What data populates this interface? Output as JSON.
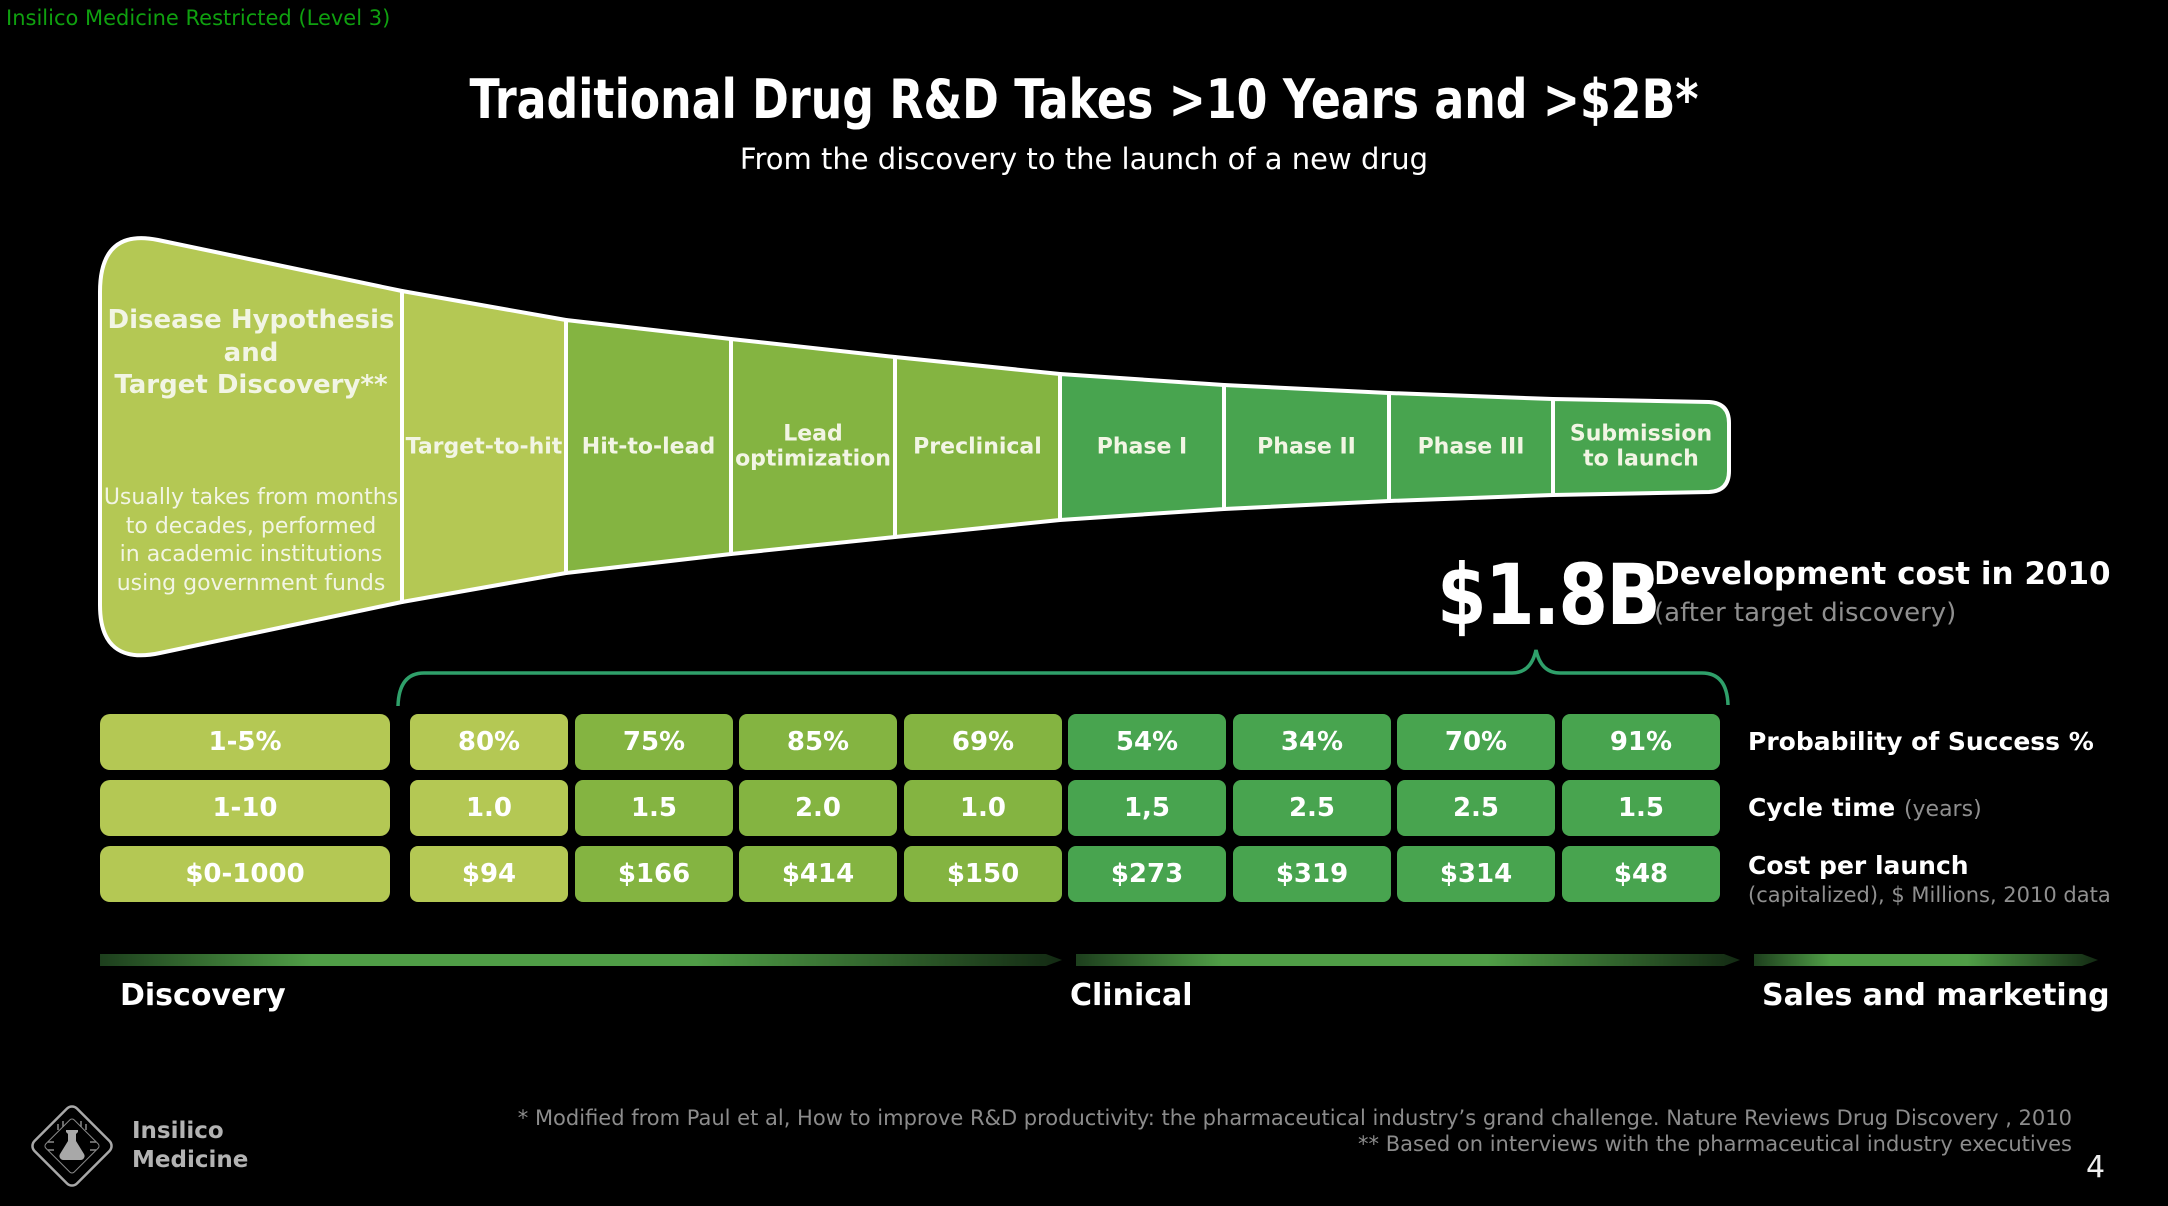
{
  "slide": {
    "classification": "Insilico Medicine Restricted (Level 3)",
    "page_number": "4"
  },
  "header": {
    "title": "Traditional Drug R&D Takes >10 Years and >$2B*",
    "subtitle": "From the discovery to the launch of a new drug"
  },
  "colors": {
    "stage_yellow": "#b4c854",
    "stage_medium": "#84b441",
    "stage_dark": "#48a44f",
    "brace": "#2fa06a",
    "restricted_text": "#0fa00f",
    "timeline_green": "#4f9d46"
  },
  "funnel": {
    "intro": {
      "title": "Disease Hypothesis\nand\nTarget Discovery**",
      "note": "Usually takes from months\nto decades, performed\nin academic institutions\nusing government funds",
      "color_key": "yellow"
    },
    "stages": [
      {
        "label": "Target-to-hit",
        "color_key": "yellow"
      },
      {
        "label": "Hit-to-lead",
        "color_key": "medium"
      },
      {
        "label": "Lead optimization",
        "color_key": "medium"
      },
      {
        "label": "Preclinical",
        "color_key": "medium"
      },
      {
        "label": "Phase I",
        "color_key": "dark"
      },
      {
        "label": "Phase II",
        "color_key": "dark"
      },
      {
        "label": "Phase III",
        "color_key": "dark"
      },
      {
        "label": "Submission to launch",
        "color_key": "dark"
      }
    ]
  },
  "cost_callout": {
    "amount": "$1.8B",
    "label": "Development cost in 2010",
    "sublabel": "(after target discovery)"
  },
  "table": {
    "rows": [
      {
        "intro": "1-5%",
        "values": [
          "80%",
          "75%",
          "85%",
          "69%",
          "54%",
          "34%",
          "70%",
          "91%"
        ],
        "label": "Probability of Success %",
        "label_suffix": ""
      },
      {
        "intro": "1-10",
        "values": [
          "1.0",
          "1.5",
          "2.0",
          "1.0",
          "1,5",
          "2.5",
          "2.5",
          "1.5"
        ],
        "label": "Cycle time",
        "label_suffix": "(years)"
      },
      {
        "intro": "$0-1000",
        "values": [
          "$94",
          "$166",
          "$414",
          "$150",
          "$273",
          "$319",
          "$314",
          "$48"
        ],
        "label": "Cost per launch",
        "label_suffix": "(capitalized), $ Millions, 2010 data"
      }
    ]
  },
  "timeline": {
    "labels": [
      "Discovery",
      "Clinical",
      "Sales and marketing"
    ]
  },
  "footnotes": {
    "line1": "* Modified from Paul et al, How to improve R&D productivity: the pharmaceutical industry’s grand challenge. Nature Reviews Drug Discovery , 2010",
    "line2": "** Based on interviews with the pharmaceutical industry executives"
  },
  "logo": {
    "line1": "Insilico",
    "line2": "Medicine"
  },
  "chart_data": {
    "type": "table",
    "title": "Traditional Drug R&D Takes >10 Years and >$2B*",
    "subtitle": "From the discovery to the launch of a new drug",
    "categories": [
      "Disease Hypothesis and Target Discovery",
      "Target-to-hit",
      "Hit-to-lead",
      "Lead optimization",
      "Preclinical",
      "Phase I",
      "Phase II",
      "Phase III",
      "Submission to launch"
    ],
    "series": [
      {
        "name": "Probability of Success %",
        "values": [
          "1-5%",
          "80%",
          "75%",
          "85%",
          "69%",
          "54%",
          "34%",
          "70%",
          "91%"
        ]
      },
      {
        "name": "Cycle time (years)",
        "values": [
          "1-10",
          "1.0",
          "1.5",
          "2.0",
          "1.0",
          "1,5",
          "2.5",
          "2.5",
          "1.5"
        ]
      },
      {
        "name": "Cost per launch (capitalized), $ Millions, 2010 data",
        "values": [
          "$0-1000",
          "$94",
          "$166",
          "$414",
          "$150",
          "$273",
          "$319",
          "$314",
          "$48"
        ]
      }
    ],
    "annotations": [
      "$1.8B Development cost in 2010 (after target discovery)"
    ],
    "timeline_phases": [
      "Discovery",
      "Clinical",
      "Sales and marketing"
    ]
  }
}
